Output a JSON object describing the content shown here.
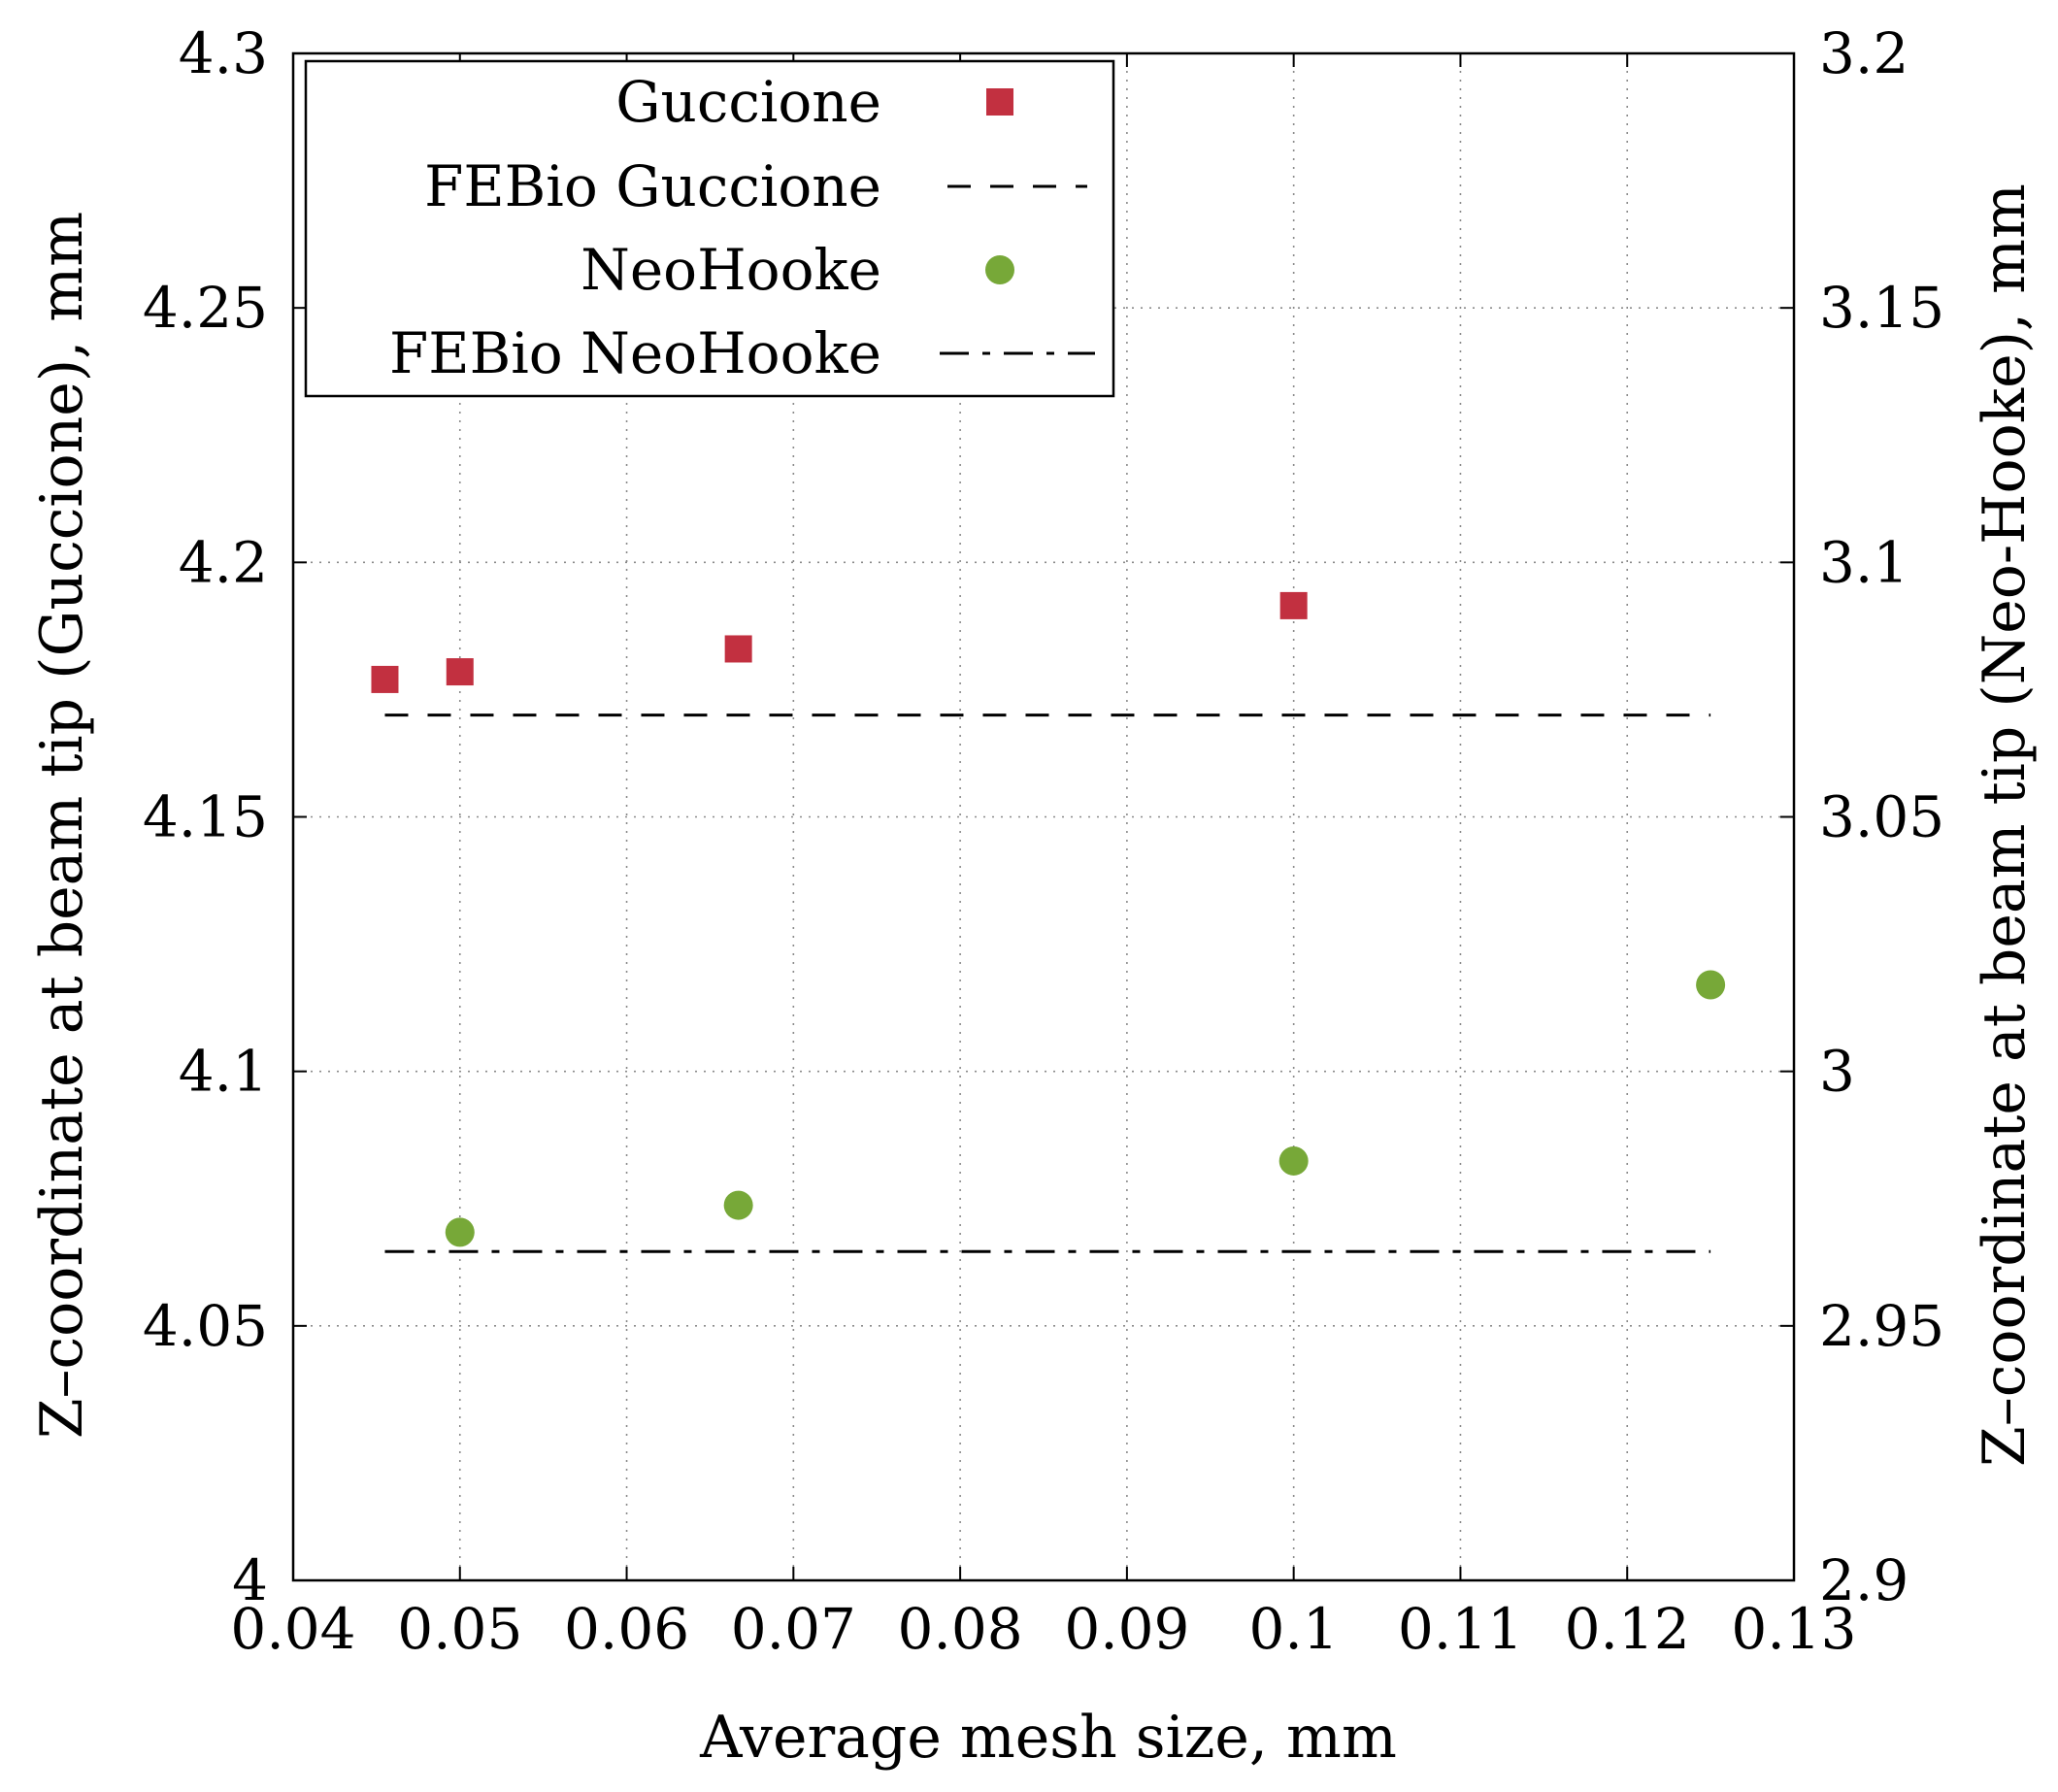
{
  "chart_data": {
    "type": "scatter",
    "xlabel": "Average mesh size, mm",
    "ylabel_left": "Z–coordinate at beam tip (Guccione), mm",
    "ylabel_right": "Z–coordinate at beam tip (Neo-Hooke), mm",
    "xlim": [
      0.04,
      0.13
    ],
    "ylim_left": [
      4.0,
      4.3
    ],
    "ylim_right": [
      2.9,
      3.2
    ],
    "x_ticks": [
      "0.04",
      "0.05",
      "0.06",
      "0.07",
      "0.08",
      "0.09",
      "0.1",
      "0.11",
      "0.12",
      "0.13"
    ],
    "x_tick_values": [
      0.04,
      0.05,
      0.06,
      0.07,
      0.08,
      0.09,
      0.1,
      0.11,
      0.12,
      0.13
    ],
    "y_left_ticks": [
      "4",
      "4.05",
      "4.1",
      "4.15",
      "4.2",
      "4.25",
      "4.3"
    ],
    "y_left_tick_values": [
      4.0,
      4.05,
      4.1,
      4.15,
      4.2,
      4.25,
      4.3
    ],
    "y_right_ticks": [
      "2.9",
      "2.95",
      "3",
      "3.05",
      "3.1",
      "3.15",
      "3.2"
    ],
    "y_right_tick_values": [
      2.9,
      2.95,
      3.0,
      3.05,
      3.1,
      3.15,
      3.2
    ],
    "grid": true,
    "legend_position": "top-left",
    "series": [
      {
        "name": "Guccione",
        "kind": "points",
        "marker": "square",
        "axis": "left",
        "color": "#c23040",
        "x": [
          0.0455,
          0.05,
          0.0667,
          0.1
        ],
        "y": [
          4.177,
          4.1785,
          4.183,
          4.1915
        ]
      },
      {
        "name": "FEBio Guccione",
        "kind": "line",
        "dash": "dashed",
        "axis": "left",
        "color": "#000000",
        "x": [
          0.0455,
          0.125
        ],
        "y": [
          4.17,
          4.17
        ]
      },
      {
        "name": "NeoHooke",
        "kind": "points",
        "marker": "circle",
        "axis": "right",
        "color": "#77a838",
        "x": [
          0.05,
          0.0667,
          0.1,
          0.125
        ],
        "y": [
          2.9684,
          2.9737,
          2.9824,
          3.017
        ]
      },
      {
        "name": "FEBio NeoHooke",
        "kind": "line",
        "dash": "dashdot",
        "axis": "right",
        "color": "#000000",
        "x": [
          0.0455,
          0.125
        ],
        "y": [
          2.9646,
          2.9646
        ]
      }
    ]
  }
}
